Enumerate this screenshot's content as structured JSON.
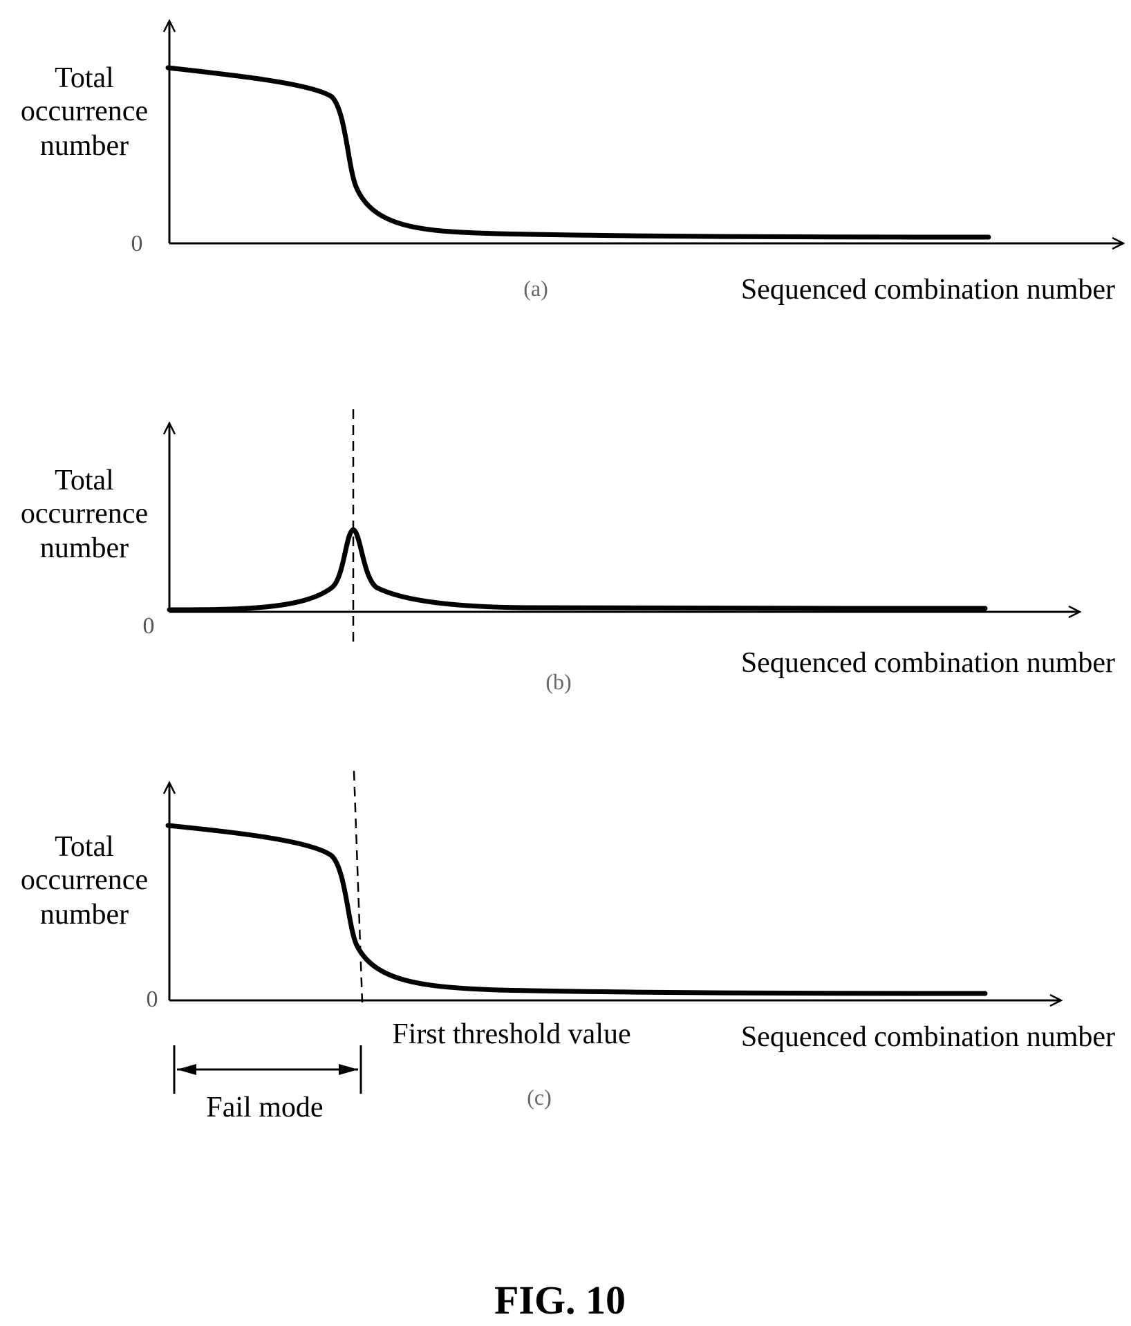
{
  "figure_label": "FIG. 10",
  "colors": {
    "ink": "#000000",
    "tag": "#666666"
  },
  "panels": [
    {
      "id": "a",
      "tag": "(a)",
      "curve_shape": "descending-step",
      "y_axis": {
        "title_lines": [
          "Total",
          "occurrence",
          "number"
        ],
        "origin_label": "0"
      },
      "x_axis": {
        "title": "Sequenced combination number"
      }
    },
    {
      "id": "b",
      "tag": "(b)",
      "curve_shape": "single-peak",
      "y_axis": {
        "title_lines": [
          "Total",
          "occurrence",
          "number"
        ],
        "origin_label": "0"
      },
      "x_axis": {
        "title": "Sequenced combination number"
      },
      "marker": {
        "type": "dashed-vertical-line",
        "at": "peak"
      }
    },
    {
      "id": "c",
      "tag": "(c)",
      "curve_shape": "descending-step",
      "y_axis": {
        "title_lines": [
          "Total",
          "occurrence",
          "number"
        ],
        "origin_label": "0"
      },
      "x_axis": {
        "title": "Sequenced combination number"
      },
      "marker": {
        "type": "dashed-vertical-line",
        "label": "First threshold value"
      },
      "range_annotation": {
        "label": "Fail mode",
        "type": "double-headed-arrow"
      }
    }
  ]
}
